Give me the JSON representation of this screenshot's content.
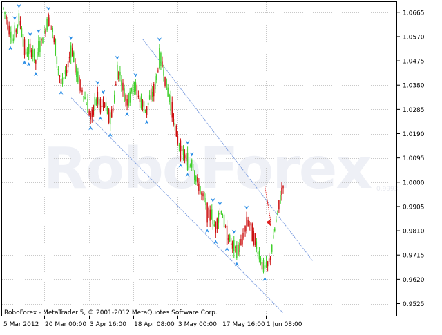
{
  "watermark": "RoboForex",
  "footer_text": "RoboForex - MetaTrader 5, © 2001-2012 MetaQuotes Software Corp.",
  "current_price_label": "0.9993",
  "colors": {
    "background": "#ffffff",
    "frame": "#000000",
    "grid": "#c8c8c8",
    "bull_candle": "#3fcf2a",
    "bear_candle": "#cc1010",
    "fractal_arrow": "#2e8fe6",
    "channel_line": "#7f9fe0",
    "forecast_arrow": "#e02020",
    "watermark": "#eef0f6"
  },
  "chart_data": {
    "type": "candlestick",
    "title": "",
    "xlabel": "",
    "ylabel": "",
    "ylim": [
      0.9475,
      1.0705
    ],
    "y_ticks": [
      1.0665,
      1.057,
      1.0475,
      1.038,
      1.0285,
      1.019,
      1.0095,
      1.0,
      0.9905,
      0.981,
      0.9715,
      0.962,
      0.9525
    ],
    "y_tick_labels": [
      "1.0665",
      "1.0570",
      "1.0475",
      "1.0380",
      "1.0285",
      "1.0190",
      "1.0095",
      "1.0000",
      "0.9905",
      "0.9810",
      "0.9715",
      "0.9620",
      "0.9525"
    ],
    "x_tick_labels": [
      "5 Mar 2012",
      "20 Mar 00:00",
      "3 Apr 16:00",
      "18 Apr 08:00",
      "3 May 00:00",
      "17 May 16:00",
      "1 Jun 08:00"
    ],
    "grid": true,
    "trend_channel": {
      "upper_start": {
        "date": "21 Apr 2012",
        "price": 1.056
      },
      "upper_end": {
        "date": "17 Jun 2012",
        "price": 0.9693
      },
      "lower_start": {
        "date": "28 Mar 2012",
        "price": 1.033
      },
      "lower_end": {
        "date": "7 Jun 2012",
        "price": 0.949
      }
    },
    "forecast_arrow": {
      "start": {
        "date": "1 Jun 2012",
        "price": 0.9985
      },
      "end": {
        "date": "3 Jun 2012",
        "price": 0.9828
      }
    },
    "price_path": [
      1.068,
      1.064,
      1.059,
      1.0555,
      1.06,
      1.064,
      1.056,
      1.05,
      1.052,
      1.051,
      1.047,
      1.053,
      1.056,
      1.06,
      1.065,
      1.06,
      1.052,
      1.043,
      1.038,
      1.042,
      1.047,
      1.053,
      1.046,
      1.04,
      1.037,
      1.033,
      1.029,
      1.025,
      1.03,
      1.033,
      1.029,
      1.031,
      1.027,
      1.025,
      1.031,
      1.043,
      1.042,
      1.035,
      1.032,
      1.034,
      1.038,
      1.036,
      1.032,
      1.03,
      1.028,
      1.033,
      1.035,
      1.04,
      1.048,
      1.046,
      1.038,
      1.033,
      1.028,
      1.02,
      1.015,
      1.012,
      1.01,
      1.006,
      1.008,
      1.002,
      0.999,
      0.995,
      0.993,
      0.987,
      0.988,
      0.982,
      0.986,
      0.989,
      0.983,
      0.979,
      0.976,
      0.974,
      0.973,
      0.976,
      0.98,
      0.985,
      0.983,
      0.979,
      0.974,
      0.97,
      0.966,
      0.967,
      0.97,
      0.978,
      0.986,
      0.993,
      0.999
    ],
    "fractal_arrows": "placed at local highs (above) and local lows (below) of the price path"
  }
}
